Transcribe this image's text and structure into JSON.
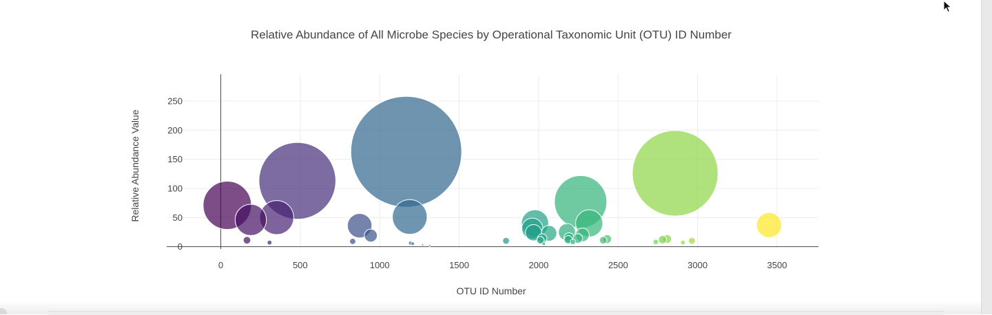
{
  "chart_data": {
    "type": "scatter",
    "title": "Relative Abundance of All Microbe Species by Operational Taxonomic Unit (OTU) ID Number",
    "xlabel": "OTU ID Number",
    "ylabel": "Relative Abundance Value",
    "xlim": [
      -340,
      3760
    ],
    "ylim": [
      -4,
      296
    ],
    "xticks": [
      0,
      500,
      1000,
      1500,
      2000,
      2500,
      3000,
      3500
    ],
    "yticks": [
      0,
      50,
      100,
      150,
      200,
      250
    ],
    "grid": true,
    "legend": "none",
    "colorscale": "viridis",
    "size_encoding": "value",
    "points": [
      {
        "x": 41,
        "y": 71
      },
      {
        "x": 165,
        "y": 11
      },
      {
        "x": 189,
        "y": 46
      },
      {
        "x": 307,
        "y": 7
      },
      {
        "x": 352,
        "y": 50
      },
      {
        "x": 482,
        "y": 113
      },
      {
        "x": 830,
        "y": 9
      },
      {
        "x": 874,
        "y": 36
      },
      {
        "x": 944,
        "y": 19
      },
      {
        "x": 1167,
        "y": 163
      },
      {
        "x": 1189,
        "y": 51
      },
      {
        "x": 1194,
        "y": 6
      },
      {
        "x": 1208,
        "y": 5
      },
      {
        "x": 1270,
        "y": 3
      },
      {
        "x": 1314,
        "y": 2
      },
      {
        "x": 1795,
        "y": 10
      },
      {
        "x": 1960,
        "y": 31
      },
      {
        "x": 1968,
        "y": 24
      },
      {
        "x": 1977,
        "y": 40
      },
      {
        "x": 2011,
        "y": 11
      },
      {
        "x": 2022,
        "y": 14
      },
      {
        "x": 2032,
        "y": 5
      },
      {
        "x": 2065,
        "y": 23
      },
      {
        "x": 2178,
        "y": 25
      },
      {
        "x": 2186,
        "y": 12
      },
      {
        "x": 2191,
        "y": 15
      },
      {
        "x": 2215,
        "y": 8
      },
      {
        "x": 2246,
        "y": 14
      },
      {
        "x": 2264,
        "y": 77
      },
      {
        "x": 2275,
        "y": 20
      },
      {
        "x": 2318,
        "y": 40
      },
      {
        "x": 2406,
        "y": 11
      },
      {
        "x": 2430,
        "y": 13
      },
      {
        "x": 2737,
        "y": 8
      },
      {
        "x": 2779,
        "y": 12
      },
      {
        "x": 2808,
        "y": 13
      },
      {
        "x": 2859,
        "y": 126
      },
      {
        "x": 2908,
        "y": 7
      },
      {
        "x": 2964,
        "y": 10
      },
      {
        "x": 3450,
        "y": 37
      }
    ]
  }
}
